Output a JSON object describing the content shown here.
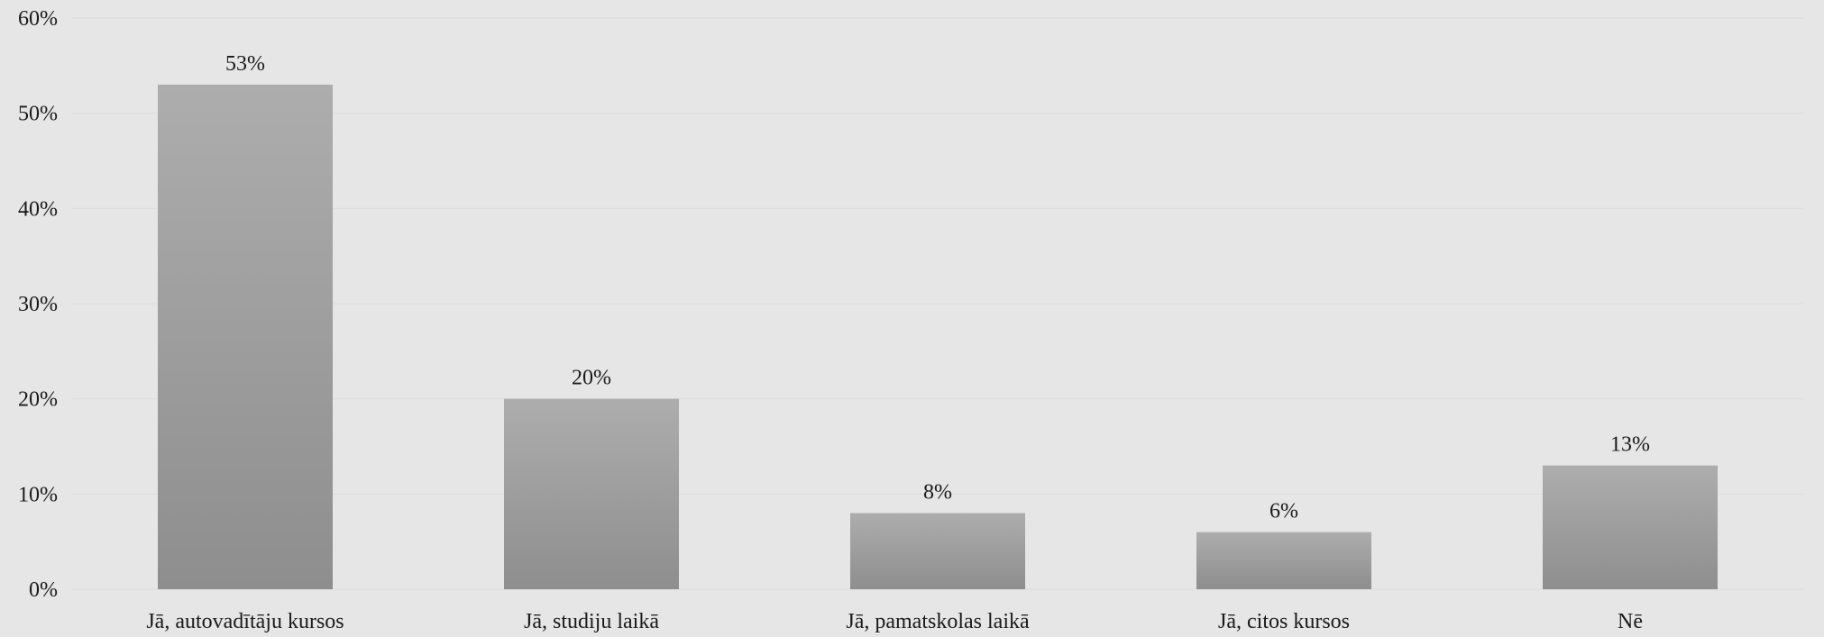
{
  "chart_data": {
    "type": "bar",
    "categories": [
      "Jā, autovadītāju kursos",
      "Jā, studiju laikā",
      "Jā, pamatskolas laikā",
      "Jā, citos kursos",
      "Nē"
    ],
    "values": [
      53,
      20,
      8,
      6,
      13
    ],
    "data_labels": [
      "53%",
      "20%",
      "8%",
      "6%",
      "13%"
    ],
    "ylim": [
      0,
      60
    ],
    "yticks": [
      0,
      10,
      20,
      30,
      40,
      50,
      60
    ],
    "ytick_labels": [
      "0%",
      "10%",
      "20%",
      "30%",
      "40%",
      "50%",
      "60%"
    ],
    "grid": true,
    "legend": "none",
    "colors": {
      "background": "#e6e6e6",
      "bar_top": "#adadad",
      "bar_bottom": "#8e8e8e",
      "grid": "#dcdcdc"
    }
  }
}
